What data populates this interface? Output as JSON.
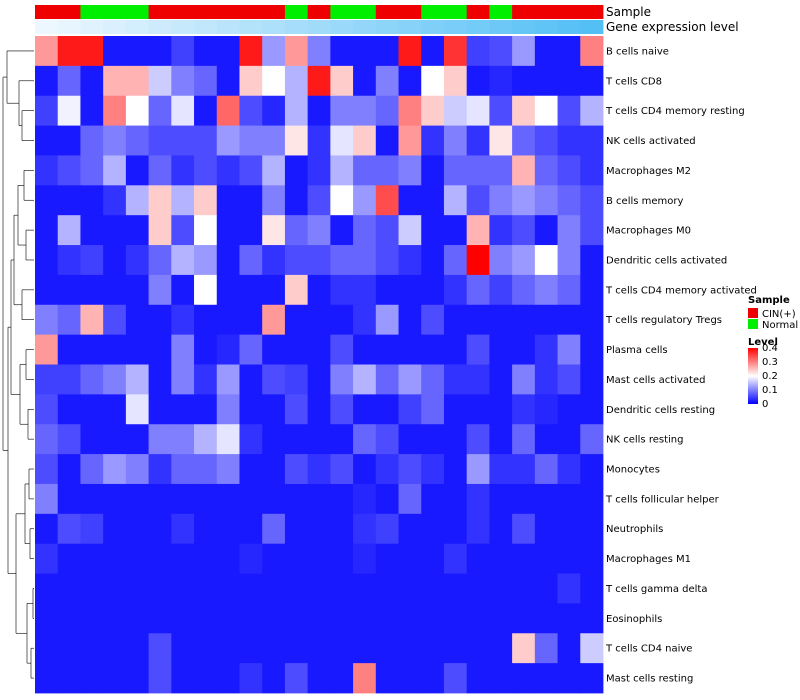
{
  "chart_data": {
    "type": "heatmap",
    "annotation_tracks": [
      {
        "name": "Sample",
        "values": [
          "CIN(+)",
          "CIN(+)",
          "Normal",
          "Normal",
          "Normal",
          "CIN(+)",
          "CIN(+)",
          "CIN(+)",
          "CIN(+)",
          "CIN(+)",
          "CIN(+)",
          "Normal",
          "CIN(+)",
          "Normal",
          "Normal",
          "CIN(+)",
          "CIN(+)",
          "Normal",
          "Normal",
          "CIN(+)",
          "Normal",
          "CIN(+)",
          "CIN(+)",
          "CIN(+)",
          "CIN(+)"
        ]
      },
      {
        "name": "Gene expression level",
        "values": [
          0.02,
          0.06,
          0.1,
          0.14,
          0.18,
          0.22,
          0.26,
          0.3,
          0.34,
          0.38,
          0.42,
          0.46,
          0.5,
          0.54,
          0.58,
          0.62,
          0.66,
          0.7,
          0.74,
          0.78,
          0.82,
          0.86,
          0.9,
          0.94,
          0.98
        ]
      }
    ],
    "legends": [
      {
        "title": "Sample",
        "entries": [
          {
            "label": "CIN(+)",
            "color": "#ee0000"
          },
          {
            "label": "Normal",
            "color": "#00ee00"
          }
        ]
      },
      {
        "title": "Level",
        "range": [
          0,
          0.4
        ],
        "ticks": [
          "0.4",
          "0.3",
          "0.2",
          "0.1",
          "0"
        ],
        "colors": [
          "#0000ff",
          "#ffffff",
          "#ff0000"
        ]
      }
    ],
    "rows": [
      {
        "label": "B cells naive",
        "values": [
          0.28,
          0.38,
          0.38,
          0.02,
          0.02,
          0.02,
          0.05,
          0.02,
          0.02,
          0.38,
          0.12,
          0.28,
          0.1,
          0.02,
          0.02,
          0.02,
          0.38,
          0.02,
          0.36,
          0.05,
          0.06,
          0.12,
          0.02,
          0.02,
          0.3
        ]
      },
      {
        "label": "T cells CD8",
        "values": [
          0.02,
          0.08,
          0.02,
          0.26,
          0.26,
          0.16,
          0.1,
          0.08,
          0.02,
          0.24,
          0.2,
          0.14,
          0.38,
          0.24,
          0.02,
          0.1,
          0.02,
          0.2,
          0.24,
          0.02,
          0.03,
          0.02,
          0.02,
          0.02,
          0.02
        ]
      },
      {
        "label": "T cells CD4 memory resting",
        "values": [
          0.05,
          0.19,
          0.02,
          0.3,
          0.2,
          0.08,
          0.18,
          0.02,
          0.32,
          0.06,
          0.03,
          0.14,
          0.02,
          0.1,
          0.1,
          0.08,
          0.3,
          0.24,
          0.16,
          0.18,
          0.06,
          0.24,
          0.2,
          0.06,
          0.14
        ]
      },
      {
        "label": "NK cells activated",
        "values": [
          0.02,
          0.02,
          0.08,
          0.1,
          0.08,
          0.06,
          0.06,
          0.06,
          0.12,
          0.1,
          0.1,
          0.22,
          0.04,
          0.18,
          0.24,
          0.02,
          0.28,
          0.04,
          0.1,
          0.04,
          0.22,
          0.08,
          0.06,
          0.04,
          0.04
        ]
      },
      {
        "label": "Macrophages M2",
        "values": [
          0.04,
          0.06,
          0.08,
          0.14,
          0.02,
          0.08,
          0.04,
          0.06,
          0.04,
          0.06,
          0.14,
          0.02,
          0.04,
          0.14,
          0.08,
          0.08,
          0.1,
          0.02,
          0.08,
          0.08,
          0.08,
          0.26,
          0.08,
          0.06,
          0.04
        ]
      },
      {
        "label": "B cells memory",
        "values": [
          0.02,
          0.02,
          0.02,
          0.04,
          0.14,
          0.24,
          0.14,
          0.24,
          0.02,
          0.02,
          0.1,
          0.02,
          0.06,
          0.2,
          0.12,
          0.34,
          0.02,
          0.02,
          0.14,
          0.06,
          0.1,
          0.12,
          0.1,
          0.08,
          0.06
        ]
      },
      {
        "label": "Macrophages M0",
        "values": [
          0.02,
          0.14,
          0.02,
          0.02,
          0.02,
          0.24,
          0.06,
          0.2,
          0.02,
          0.02,
          0.22,
          0.08,
          0.1,
          0.02,
          0.08,
          0.06,
          0.16,
          0.02,
          0.02,
          0.26,
          0.04,
          0.06,
          0.02,
          0.1,
          0.06
        ]
      },
      {
        "label": "Dendritic cells activated",
        "values": [
          0.02,
          0.04,
          0.05,
          0.02,
          0.04,
          0.08,
          0.14,
          0.12,
          0.02,
          0.08,
          0.04,
          0.06,
          0.06,
          0.08,
          0.08,
          0.06,
          0.04,
          0.02,
          0.08,
          0.4,
          0.1,
          0.12,
          0.2,
          0.1,
          0.02
        ]
      },
      {
        "label": "T cells CD4 memory activated",
        "values": [
          0.02,
          0.02,
          0.02,
          0.02,
          0.02,
          0.1,
          0.02,
          0.2,
          0.02,
          0.02,
          0.02,
          0.24,
          0.02,
          0.04,
          0.04,
          0.02,
          0.02,
          0.02,
          0.04,
          0.08,
          0.05,
          0.08,
          0.1,
          0.08,
          0.02
        ]
      },
      {
        "label": "T cells regulatory  Tregs",
        "values": [
          0.1,
          0.08,
          0.26,
          0.06,
          0.02,
          0.02,
          0.04,
          0.02,
          0.02,
          0.02,
          0.28,
          0.02,
          0.02,
          0.02,
          0.04,
          0.12,
          0.02,
          0.06,
          0.02,
          0.02,
          0.02,
          0.02,
          0.02,
          0.02,
          0.02
        ]
      },
      {
        "label": "Plasma cells",
        "values": [
          0.28,
          0.02,
          0.02,
          0.02,
          0.02,
          0.02,
          0.1,
          0.02,
          0.03,
          0.08,
          0.02,
          0.02,
          0.02,
          0.06,
          0.02,
          0.02,
          0.02,
          0.02,
          0.02,
          0.06,
          0.02,
          0.02,
          0.04,
          0.1,
          0.02
        ]
      },
      {
        "label": "Mast cells activated",
        "values": [
          0.05,
          0.05,
          0.08,
          0.1,
          0.14,
          0.02,
          0.1,
          0.04,
          0.12,
          0.02,
          0.06,
          0.05,
          0.02,
          0.1,
          0.14,
          0.08,
          0.12,
          0.08,
          0.04,
          0.04,
          0.02,
          0.1,
          0.04,
          0.06,
          0.02
        ]
      },
      {
        "label": "Dendritic cells resting",
        "values": [
          0.06,
          0.02,
          0.02,
          0.02,
          0.18,
          0.02,
          0.02,
          0.02,
          0.1,
          0.02,
          0.02,
          0.06,
          0.02,
          0.06,
          0.02,
          0.02,
          0.05,
          0.08,
          0.02,
          0.02,
          0.02,
          0.04,
          0.03,
          0.02,
          0.02
        ]
      },
      {
        "label": "NK cells resting",
        "values": [
          0.08,
          0.06,
          0.02,
          0.02,
          0.02,
          0.1,
          0.1,
          0.14,
          0.18,
          0.04,
          0.02,
          0.02,
          0.02,
          0.02,
          0.08,
          0.06,
          0.02,
          0.02,
          0.02,
          0.06,
          0.02,
          0.08,
          0.02,
          0.02,
          0.08
        ]
      },
      {
        "label": "Monocytes",
        "values": [
          0.06,
          0.02,
          0.08,
          0.12,
          0.1,
          0.04,
          0.08,
          0.08,
          0.1,
          0.02,
          0.02,
          0.06,
          0.04,
          0.06,
          0.02,
          0.04,
          0.06,
          0.04,
          0.02,
          0.12,
          0.04,
          0.04,
          0.08,
          0.04,
          0.02
        ]
      },
      {
        "label": "T cells follicular helper",
        "values": [
          0.1,
          0.02,
          0.02,
          0.02,
          0.02,
          0.02,
          0.02,
          0.02,
          0.02,
          0.02,
          0.02,
          0.02,
          0.02,
          0.02,
          0.03,
          0.02,
          0.08,
          0.02,
          0.02,
          0.04,
          0.02,
          0.02,
          0.02,
          0.02,
          0.02
        ]
      },
      {
        "label": "Neutrophils",
        "values": [
          0.02,
          0.06,
          0.05,
          0.02,
          0.02,
          0.02,
          0.04,
          0.02,
          0.02,
          0.02,
          0.08,
          0.02,
          0.02,
          0.02,
          0.04,
          0.05,
          0.02,
          0.02,
          0.02,
          0.04,
          0.02,
          0.06,
          0.02,
          0.02,
          0.02
        ]
      },
      {
        "label": "Macrophages M1",
        "values": [
          0.04,
          0.02,
          0.02,
          0.02,
          0.02,
          0.02,
          0.02,
          0.02,
          0.02,
          0.03,
          0.02,
          0.02,
          0.02,
          0.02,
          0.03,
          0.02,
          0.02,
          0.02,
          0.04,
          0.02,
          0.02,
          0.02,
          0.02,
          0.02,
          0.02
        ]
      },
      {
        "label": "T cells gamma delta",
        "values": [
          0.02,
          0.02,
          0.02,
          0.02,
          0.02,
          0.02,
          0.02,
          0.02,
          0.02,
          0.02,
          0.02,
          0.02,
          0.02,
          0.02,
          0.02,
          0.02,
          0.02,
          0.02,
          0.02,
          0.02,
          0.02,
          0.02,
          0.02,
          0.04,
          0.02
        ]
      },
      {
        "label": "Eosinophils",
        "values": [
          0.02,
          0.02,
          0.02,
          0.02,
          0.02,
          0.02,
          0.02,
          0.02,
          0.02,
          0.02,
          0.02,
          0.02,
          0.02,
          0.02,
          0.02,
          0.02,
          0.02,
          0.02,
          0.02,
          0.02,
          0.02,
          0.02,
          0.02,
          0.02,
          0.02
        ]
      },
      {
        "label": "T cells CD4 naive",
        "values": [
          0.02,
          0.02,
          0.02,
          0.02,
          0.02,
          0.06,
          0.02,
          0.02,
          0.02,
          0.02,
          0.02,
          0.02,
          0.02,
          0.02,
          0.02,
          0.02,
          0.02,
          0.02,
          0.02,
          0.02,
          0.02,
          0.24,
          0.08,
          0.02,
          0.16
        ]
      },
      {
        "label": "Mast cells resting",
        "values": [
          0.02,
          0.02,
          0.02,
          0.02,
          0.02,
          0.06,
          0.02,
          0.02,
          0.02,
          0.04,
          0.02,
          0.06,
          0.02,
          0.02,
          0.3,
          0.02,
          0.02,
          0.02,
          0.06,
          0.02,
          0.02,
          0.02,
          0.02,
          0.02,
          0.02
        ]
      }
    ]
  }
}
